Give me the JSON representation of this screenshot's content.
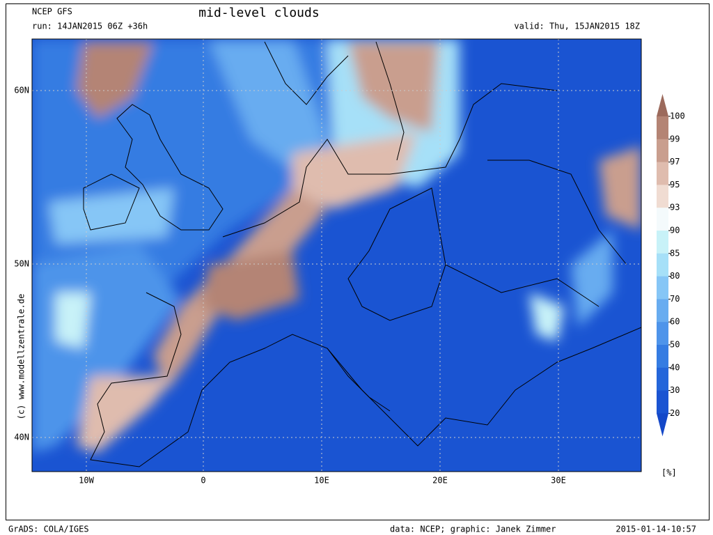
{
  "header": {
    "model": "NCEP GFS",
    "run": "run: 14JAN2015 06Z +36h",
    "title": "mid-level clouds",
    "valid": "valid: Thu, 15JAN2015 18Z"
  },
  "map": {
    "lat_labels": [
      "60N",
      "50N",
      "40N"
    ],
    "lon_labels": [
      "10W",
      "0",
      "10E",
      "20E",
      "30E"
    ],
    "credit": "(c) www.modellzentrale.de"
  },
  "legend": {
    "levels": [
      100,
      99,
      97,
      95,
      93,
      90,
      85,
      80,
      70,
      60,
      50,
      40,
      30,
      20
    ],
    "colors": [
      "#9c6a5c",
      "#b48474",
      "#c99e8e",
      "#dfbcae",
      "#f0dcd2",
      "#f4fafc",
      "#c8f2f8",
      "#a6e0f8",
      "#86c6f6",
      "#68acf0",
      "#4e94ea",
      "#357ce2",
      "#2466da",
      "#1a54d2",
      "#1448c8"
    ],
    "unit": "[%]"
  },
  "footer": {
    "left": "GrADS: COLA/IGES",
    "center": "data: NCEP; graphic: Janek Zimmer",
    "right": "2015-01-14-10:57"
  }
}
